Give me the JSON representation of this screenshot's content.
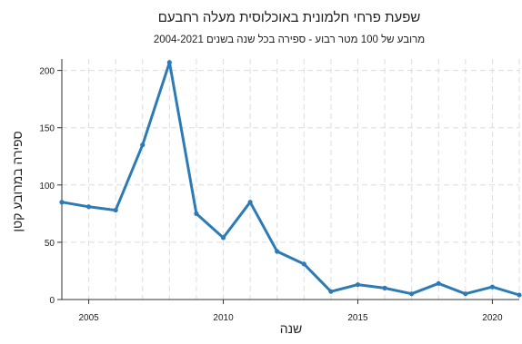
{
  "chart_data": {
    "type": "line",
    "title": "שפעת פרחי חלמונית באוכלוסית מעלה רחבעם",
    "subtitle": "מרובע של 100 מטר רבוע - ספירה בכל שנה בשנים 2004-2021",
    "xlabel": "שנה",
    "ylabel": "ספירה במרובע קטן",
    "xlim": [
      2004,
      2021
    ],
    "ylim": [
      0,
      210
    ],
    "xticks": [
      2005,
      2010,
      2015,
      2020
    ],
    "yticks": [
      0,
      50,
      100,
      150,
      200
    ],
    "grid": true,
    "series": [
      {
        "x": [
          2004,
          2005,
          2006,
          2007,
          2008,
          2009,
          2010,
          2011,
          2012,
          2013,
          2014,
          2015,
          2016,
          2017,
          2018,
          2019,
          2020,
          2021
        ],
        "values": [
          85,
          81,
          78,
          135,
          207,
          75,
          54,
          85,
          42,
          31,
          7,
          13,
          10,
          5,
          14,
          5,
          11,
          4
        ]
      }
    ],
    "colors": {
      "line": "#2c7bb6",
      "grid": "#dcdcdc",
      "axis": "#333333",
      "text": "#222222"
    }
  }
}
